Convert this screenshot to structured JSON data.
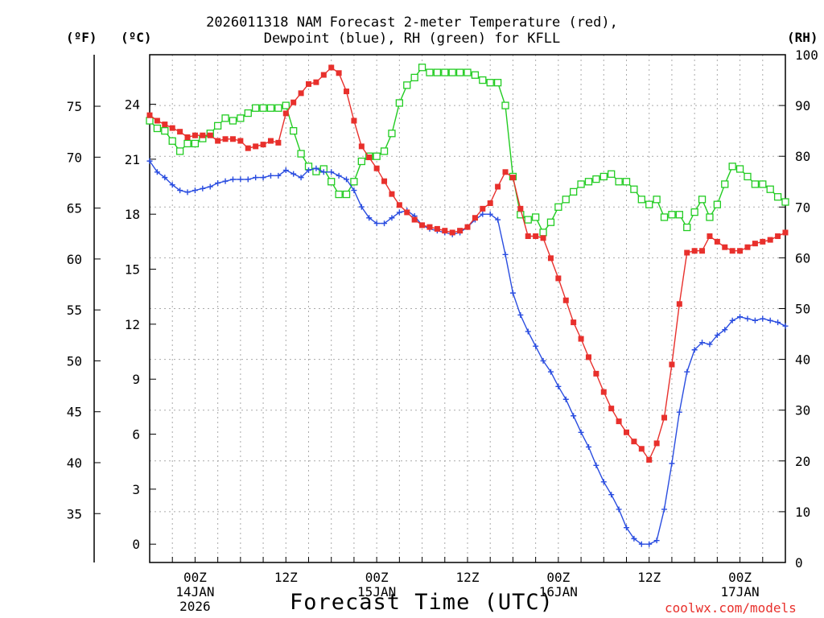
{
  "header": {
    "title_line1": "2026011318 NAM Forecast 2-meter Temperature (red),",
    "title_line2": "Dewpoint (blue), RH (green) for KFLL",
    "unit_f": "(ºF)",
    "unit_c": "(ºC)",
    "unit_rh": "(RH)"
  },
  "footer": {
    "x_title": "Forecast Time (UTC)",
    "credit": "coolwx.com/models"
  },
  "colors": {
    "temperature": "#e8302c",
    "dewpoint": "#2a4de0",
    "rh": "#22cc22",
    "grid": "#aaaaaa",
    "axis": "#000000"
  },
  "chart_data": {
    "type": "line",
    "title": "2026011318 NAM Forecast 2-meter Temperature (red), Dewpoint (blue), RH (green) for KFLL",
    "xlabel": "Forecast Time (UTC)",
    "x_unit": "forecast hour (h after 2026-01-13 18Z)",
    "xlim": [
      0,
      84
    ],
    "x_ticks": [
      {
        "x": 6,
        "label": "00Z",
        "sub1": "14JAN",
        "sub2": "2026"
      },
      {
        "x": 18,
        "label": "12Z",
        "sub1": "",
        "sub2": ""
      },
      {
        "x": 30,
        "label": "00Z",
        "sub1": "15JAN",
        "sub2": ""
      },
      {
        "x": 42,
        "label": "12Z",
        "sub1": "",
        "sub2": ""
      },
      {
        "x": 54,
        "label": "00Z",
        "sub1": "16JAN",
        "sub2": ""
      },
      {
        "x": 66,
        "label": "12Z",
        "sub1": "",
        "sub2": ""
      },
      {
        "x": 78,
        "label": "00Z",
        "sub1": "17JAN",
        "sub2": ""
      }
    ],
    "ylabel_left_c": "(ºC)",
    "ylim_c": [
      -1,
      26.7
    ],
    "y_ticks_c": [
      0,
      3,
      6,
      9,
      12,
      15,
      18,
      21,
      24
    ],
    "ylabel_left_f": "(ºF)",
    "y_ticks_f": [
      35,
      40,
      45,
      50,
      55,
      60,
      65,
      70,
      75
    ],
    "ylabel_right": "(RH)",
    "ylim_rh": [
      0,
      100
    ],
    "y_ticks_rh": [
      0,
      10,
      20,
      30,
      40,
      50,
      60,
      70,
      80,
      90,
      100
    ],
    "series": [
      {
        "name": "Temperature",
        "unit": "°C",
        "marker": "filled-square",
        "values": [
          [
            0,
            23.4
          ],
          [
            1,
            23.1
          ],
          [
            2,
            22.9
          ],
          [
            3,
            22.7
          ],
          [
            4,
            22.5
          ],
          [
            5,
            22.2
          ],
          [
            6,
            22.3
          ],
          [
            7,
            22.3
          ],
          [
            8,
            22.3
          ],
          [
            9,
            22.0
          ],
          [
            10,
            22.1
          ],
          [
            11,
            22.1
          ],
          [
            12,
            22.0
          ],
          [
            13,
            21.6
          ],
          [
            14,
            21.7
          ],
          [
            15,
            21.8
          ],
          [
            16,
            22.0
          ],
          [
            17,
            21.9
          ],
          [
            18,
            23.5
          ],
          [
            19,
            24.1
          ],
          [
            20,
            24.6
          ],
          [
            21,
            25.1
          ],
          [
            22,
            25.2
          ],
          [
            23,
            25.6
          ],
          [
            24,
            26.0
          ],
          [
            25,
            25.7
          ],
          [
            26,
            24.7
          ],
          [
            27,
            23.1
          ],
          [
            28,
            21.7
          ],
          [
            29,
            21.1
          ],
          [
            30,
            20.5
          ],
          [
            31,
            19.8
          ],
          [
            32,
            19.1
          ],
          [
            33,
            18.5
          ],
          [
            34,
            18.1
          ],
          [
            35,
            17.7
          ],
          [
            36,
            17.4
          ],
          [
            37,
            17.3
          ],
          [
            38,
            17.2
          ],
          [
            39,
            17.1
          ],
          [
            40,
            17.0
          ],
          [
            41,
            17.1
          ],
          [
            42,
            17.3
          ],
          [
            43,
            17.8
          ],
          [
            44,
            18.3
          ],
          [
            45,
            18.6
          ],
          [
            46,
            19.5
          ],
          [
            47,
            20.3
          ],
          [
            48,
            20.0
          ],
          [
            49,
            18.3
          ],
          [
            50,
            16.8
          ],
          [
            51,
            16.8
          ],
          [
            52,
            16.7
          ],
          [
            53,
            15.6
          ],
          [
            54,
            14.5
          ],
          [
            55,
            13.3
          ],
          [
            56,
            12.1
          ],
          [
            57,
            11.2
          ],
          [
            58,
            10.2
          ],
          [
            59,
            9.3
          ],
          [
            60,
            8.3
          ],
          [
            61,
            7.4
          ],
          [
            62,
            6.7
          ],
          [
            63,
            6.1
          ],
          [
            64,
            5.6
          ],
          [
            65,
            5.2
          ],
          [
            66,
            4.6
          ],
          [
            67,
            5.5
          ],
          [
            68,
            6.9
          ],
          [
            69,
            9.8
          ],
          [
            70,
            13.1
          ],
          [
            71,
            15.9
          ],
          [
            72,
            16.0
          ],
          [
            73,
            16.0
          ],
          [
            74,
            16.8
          ],
          [
            75,
            16.5
          ],
          [
            76,
            16.2
          ],
          [
            77,
            16.0
          ],
          [
            78,
            16.0
          ],
          [
            79,
            16.2
          ],
          [
            80,
            16.4
          ],
          [
            81,
            16.5
          ],
          [
            82,
            16.6
          ],
          [
            83,
            16.8
          ],
          [
            84,
            17.0
          ]
        ]
      },
      {
        "name": "Dewpoint",
        "unit": "°C",
        "marker": "plus",
        "values": [
          [
            0,
            20.9
          ],
          [
            1,
            20.3
          ],
          [
            2,
            20.0
          ],
          [
            3,
            19.6
          ],
          [
            4,
            19.3
          ],
          [
            5,
            19.2
          ],
          [
            6,
            19.3
          ],
          [
            7,
            19.4
          ],
          [
            8,
            19.5
          ],
          [
            9,
            19.7
          ],
          [
            10,
            19.8
          ],
          [
            11,
            19.9
          ],
          [
            12,
            19.9
          ],
          [
            13,
            19.9
          ],
          [
            14,
            20.0
          ],
          [
            15,
            20.0
          ],
          [
            16,
            20.1
          ],
          [
            17,
            20.1
          ],
          [
            18,
            20.4
          ],
          [
            19,
            20.2
          ],
          [
            20,
            20.0
          ],
          [
            21,
            20.4
          ],
          [
            22,
            20.5
          ],
          [
            23,
            20.3
          ],
          [
            24,
            20.3
          ],
          [
            25,
            20.1
          ],
          [
            26,
            19.9
          ],
          [
            27,
            19.3
          ],
          [
            28,
            18.4
          ],
          [
            29,
            17.8
          ],
          [
            30,
            17.5
          ],
          [
            31,
            17.5
          ],
          [
            32,
            17.8
          ],
          [
            33,
            18.1
          ],
          [
            34,
            18.2
          ],
          [
            35,
            17.9
          ],
          [
            36,
            17.4
          ],
          [
            37,
            17.2
          ],
          [
            38,
            17.1
          ],
          [
            39,
            17.0
          ],
          [
            40,
            16.9
          ],
          [
            41,
            17.0
          ],
          [
            42,
            17.3
          ],
          [
            43,
            17.7
          ],
          [
            44,
            18.0
          ],
          [
            45,
            18.0
          ],
          [
            46,
            17.7
          ],
          [
            47,
            15.8
          ],
          [
            48,
            13.7
          ],
          [
            49,
            12.5
          ],
          [
            50,
            11.6
          ],
          [
            51,
            10.8
          ],
          [
            52,
            10.0
          ],
          [
            53,
            9.4
          ],
          [
            54,
            8.6
          ],
          [
            55,
            7.9
          ],
          [
            56,
            7.0
          ],
          [
            57,
            6.1
          ],
          [
            58,
            5.3
          ],
          [
            59,
            4.3
          ],
          [
            60,
            3.4
          ],
          [
            61,
            2.7
          ],
          [
            62,
            1.9
          ],
          [
            63,
            0.9
          ],
          [
            64,
            0.3
          ],
          [
            65,
            0.0
          ],
          [
            66,
            0.0
          ],
          [
            67,
            0.2
          ],
          [
            68,
            1.9
          ],
          [
            69,
            4.4
          ],
          [
            70,
            7.2
          ],
          [
            71,
            9.4
          ],
          [
            72,
            10.6
          ],
          [
            73,
            11.0
          ],
          [
            74,
            10.9
          ],
          [
            75,
            11.4
          ],
          [
            76,
            11.7
          ],
          [
            77,
            12.2
          ],
          [
            78,
            12.4
          ],
          [
            79,
            12.3
          ],
          [
            80,
            12.2
          ],
          [
            81,
            12.3
          ],
          [
            82,
            12.2
          ],
          [
            83,
            12.1
          ],
          [
            84,
            11.9
          ]
        ]
      },
      {
        "name": "RH",
        "unit": "%",
        "marker": "hollow-square",
        "values": [
          [
            0,
            87
          ],
          [
            1,
            85.5
          ],
          [
            2,
            85
          ],
          [
            3,
            83
          ],
          [
            4,
            81
          ],
          [
            5,
            82.5
          ],
          [
            6,
            82.5
          ],
          [
            7,
            83.5
          ],
          [
            8,
            84.5
          ],
          [
            9,
            86
          ],
          [
            10,
            87.5
          ],
          [
            11,
            87
          ],
          [
            12,
            87.5
          ],
          [
            13,
            88.5
          ],
          [
            14,
            89.5
          ],
          [
            15,
            89.5
          ],
          [
            16,
            89.5
          ],
          [
            17,
            89.5
          ],
          [
            18,
            90
          ],
          [
            19,
            85
          ],
          [
            20,
            80.5
          ],
          [
            21,
            78
          ],
          [
            22,
            77
          ],
          [
            23,
            77.5
          ],
          [
            24,
            75
          ],
          [
            25,
            72.5
          ],
          [
            26,
            72.5
          ],
          [
            27,
            75
          ],
          [
            28,
            79
          ],
          [
            29,
            80
          ],
          [
            30,
            80
          ],
          [
            31,
            81
          ],
          [
            32,
            84.5
          ],
          [
            33,
            90.5
          ],
          [
            34,
            94
          ],
          [
            35,
            95.5
          ],
          [
            36,
            97.5
          ],
          [
            37,
            96.5
          ],
          [
            38,
            96.5
          ],
          [
            39,
            96.5
          ],
          [
            40,
            96.5
          ],
          [
            41,
            96.5
          ],
          [
            42,
            96.5
          ],
          [
            43,
            96
          ],
          [
            44,
            95
          ],
          [
            45,
            94.5
          ],
          [
            46,
            94.5
          ],
          [
            47,
            90
          ],
          [
            48,
            76
          ],
          [
            49,
            68.5
          ],
          [
            50,
            67.5
          ],
          [
            51,
            68
          ],
          [
            52,
            65
          ],
          [
            53,
            67
          ],
          [
            54,
            70
          ],
          [
            55,
            71.5
          ],
          [
            56,
            73
          ],
          [
            57,
            74.5
          ],
          [
            58,
            75
          ],
          [
            59,
            75.5
          ],
          [
            60,
            76
          ],
          [
            61,
            76.5
          ],
          [
            62,
            75
          ],
          [
            63,
            75
          ],
          [
            64,
            73.5
          ],
          [
            65,
            71.5
          ],
          [
            66,
            70.5
          ],
          [
            67,
            71.5
          ],
          [
            68,
            68
          ],
          [
            69,
            68.5
          ],
          [
            70,
            68.5
          ],
          [
            71,
            66
          ],
          [
            72,
            69
          ],
          [
            73,
            71.5
          ],
          [
            74,
            68
          ],
          [
            75,
            70.5
          ],
          [
            76,
            74.5
          ],
          [
            77,
            78
          ],
          [
            78,
            77.5
          ],
          [
            79,
            76
          ],
          [
            80,
            74.5
          ],
          [
            81,
            74.5
          ],
          [
            82,
            73.5
          ],
          [
            83,
            72
          ],
          [
            84,
            71
          ]
        ]
      }
    ]
  }
}
